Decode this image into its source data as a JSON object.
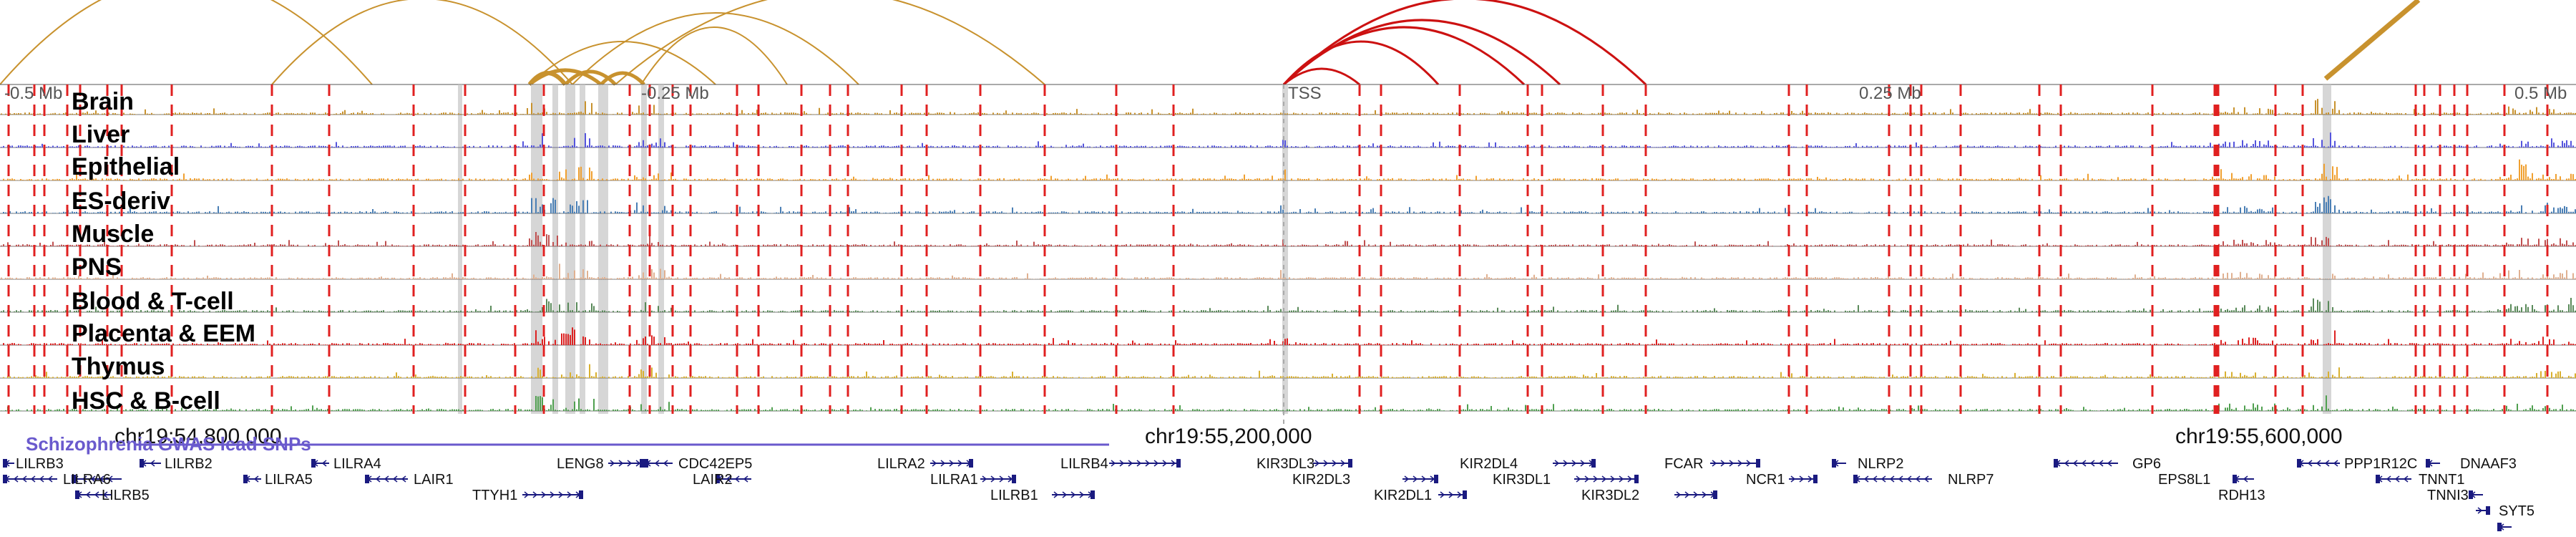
{
  "tracks": [
    {
      "label": "Brain",
      "color": "#c8922e"
    },
    {
      "label": "Liver",
      "color": "#5555dd"
    },
    {
      "label": "Epithelial",
      "color": "#f0a030"
    },
    {
      "label": "ES-deriv",
      "color": "#4a7fb5"
    },
    {
      "label": "Muscle",
      "color": "#c05050"
    },
    {
      "label": "PNS",
      "color": "#e0b090"
    },
    {
      "label": "Blood & T-cell",
      "color": "#5a8a5a"
    },
    {
      "label": "Placenta & EEM",
      "color": "#dd2222"
    },
    {
      "label": "Thymus",
      "color": "#d9b030"
    },
    {
      "label": "HSC & B-cell",
      "color": "#50a050"
    }
  ],
  "axis_labels": {
    "left": "-0.5 Mb",
    "mid_left": "-0.25 Mb",
    "tss": "TSS",
    "mid_right": "0.25 Mb",
    "right": "0.5 Mb"
  },
  "coordinates": [
    "chr19:54,800,000",
    "chr19:55,200,000",
    "chr19:55,600,000"
  ],
  "snp_track_label": "Schizophrenia GWAS lead SNPs",
  "genes": [
    "LILRB3",
    "LILRA6",
    "LILRB2",
    "LILRB5",
    "LILRA5",
    "LILRA4",
    "LAIR1",
    "TTYH1",
    "LENG8",
    "CDC42EP5",
    "LAIR2",
    "LILRA2",
    "LILRA1",
    "LILRB1",
    "LILRB4",
    "KIR3DL3",
    "KIR2DL3",
    "KIR2DL1",
    "KIR2DL4",
    "KIR3DL1",
    "KIR3DL2",
    "FCAR",
    "NCR1",
    "NLRP2",
    "NLRP7",
    "GP6",
    "EPS8L1",
    "RDH13",
    "PPP1R12C",
    "TNNT1",
    "TNNI3",
    "DNAAF3",
    "SYT5"
  ],
  "colors": {
    "red_marker": "#e02020",
    "gray_highlight": "#c8c8c8",
    "arc_gold": "#c8922e",
    "arc_red": "#cc1111",
    "gene_blue": "#1a1a80",
    "snp_purple": "#6a5acd"
  }
}
